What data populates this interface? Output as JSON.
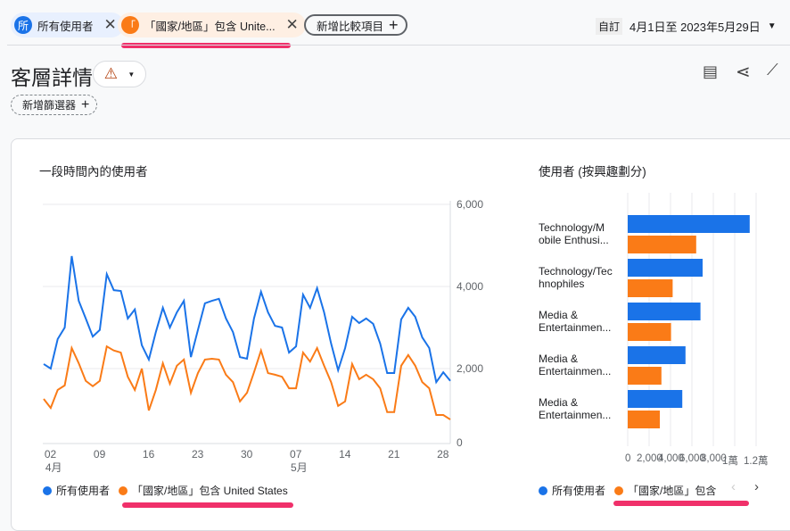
{
  "header": {
    "compare_chips": [
      {
        "avatar": "所",
        "label": "所有使用者",
        "color": "#1a73e8"
      },
      {
        "avatar": "「",
        "label": "「國家/地區」包含 Unite...",
        "color": "#fa7b17"
      }
    ],
    "add_comparison": "新增比較項目",
    "date_mode": "自訂",
    "date_range": "4月1日至 2023年5月29日"
  },
  "page": {
    "title": "客層詳情",
    "add_filter": "新增篩選器"
  },
  "colors": {
    "blue": "#1a73e8",
    "orange": "#fa7b17",
    "highlight": "#f0306a"
  },
  "chart_data": [
    {
      "type": "line",
      "title": "一段時間內的使用者",
      "start_date": "2023-04-01",
      "ylim": [
        0,
        6000
      ],
      "yticks": [
        "6,000",
        "4,000",
        "2,000",
        "0"
      ],
      "xticks": [
        {
          "day": "02",
          "month": "4月",
          "index": 1
        },
        {
          "day": "09",
          "index": 8
        },
        {
          "day": "16",
          "index": 15
        },
        {
          "day": "23",
          "index": 22
        },
        {
          "day": "30",
          "index": 29
        },
        {
          "day": "07",
          "month": "5月",
          "index": 36
        },
        {
          "day": "14",
          "index": 43
        },
        {
          "day": "21",
          "index": 50
        },
        {
          "day": "28",
          "index": 57
        }
      ],
      "series": [
        {
          "name": "所有使用者",
          "color": "#1a73e8",
          "values": [
            2110,
            2000,
            2720,
            3000,
            4740,
            3650,
            3220,
            2780,
            2940,
            4300,
            3910,
            3890,
            3220,
            3440,
            2570,
            2220,
            2890,
            3480,
            3000,
            3370,
            3650,
            2280,
            2940,
            3590,
            3650,
            3700,
            3220,
            2890,
            2280,
            2240,
            3220,
            3870,
            3370,
            3040,
            3000,
            2390,
            2540,
            3800,
            3480,
            3960,
            3370,
            2610,
            1960,
            2500,
            3260,
            3110,
            3220,
            3090,
            2610,
            1890,
            1890,
            3200,
            3480,
            3260,
            2760,
            2500,
            1670,
            1910,
            1700
          ]
        },
        {
          "name": "「國家/地區」包含 United States",
          "color": "#fa7b17",
          "values": [
            1260,
            1040,
            1480,
            1590,
            2500,
            2130,
            1700,
            1570,
            1700,
            2540,
            2440,
            2390,
            1800,
            1480,
            2000,
            980,
            1480,
            2130,
            1630,
            2070,
            2220,
            1410,
            1890,
            2220,
            2240,
            2220,
            1850,
            1670,
            1200,
            1410,
            1910,
            2440,
            1890,
            1850,
            1800,
            1520,
            1520,
            2390,
            2170,
            2500,
            2070,
            1670,
            1090,
            1200,
            2110,
            1740,
            1850,
            1740,
            1520,
            940,
            940,
            2070,
            2330,
            2070,
            1670,
            1520,
            870,
            870,
            760
          ]
        }
      ],
      "legend": [
        "所有使用者",
        "「國家/地區」包含 United States"
      ]
    },
    {
      "type": "bar",
      "title": "使用者 (按興趣劃分)",
      "orientation": "horizontal",
      "xlim": [
        0,
        12000
      ],
      "xticks": [
        "0",
        "2,000",
        "4,000",
        "6,000",
        "8,000",
        "1萬",
        "1.2萬"
      ],
      "categories": [
        [
          "Technology/M",
          "obile Enthusi..."
        ],
        [
          "Technology/Tec",
          "hnophiles"
        ],
        [
          "Media &",
          "Entertainmen..."
        ],
        [
          "Media &",
          "Entertainmen..."
        ],
        [
          "Media &",
          "Entertainmen..."
        ]
      ],
      "series": [
        {
          "name": "所有使用者",
          "color": "#1a73e8",
          "values": [
            11400,
            7000,
            6800,
            5400,
            5100
          ]
        },
        {
          "name": "「國家/地區」包含",
          "color": "#fa7b17",
          "values": [
            6400,
            4200,
            4050,
            3150,
            3000
          ]
        }
      ],
      "legend": [
        "所有使用者",
        "「國家/地區」包含"
      ]
    }
  ]
}
